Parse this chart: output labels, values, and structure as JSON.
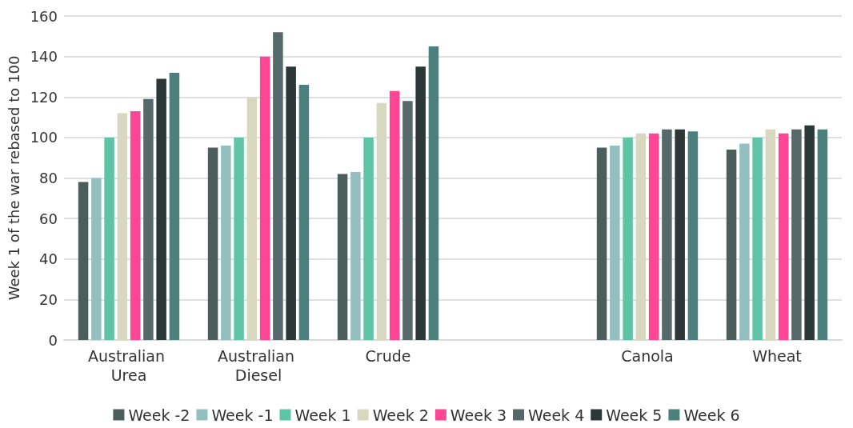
{
  "chart_data": {
    "type": "bar",
    "ylabel": "Week 1 of the war rebased to 100",
    "categories": [
      "Australian Urea",
      "Australian Diesel",
      "Crude",
      null,
      "Canola",
      "Wheat"
    ],
    "series": [
      {
        "name": "Week -2",
        "color": "#4a5e5c",
        "values": [
          78,
          95,
          82,
          null,
          95,
          94
        ]
      },
      {
        "name": "Week -1",
        "color": "#93bfbf",
        "values": [
          80,
          96,
          83,
          null,
          96,
          97
        ]
      },
      {
        "name": "Week 1",
        "color": "#5fc4a6",
        "values": [
          100,
          100,
          100,
          null,
          100,
          100
        ]
      },
      {
        "name": "Week 2",
        "color": "#d8d8c0",
        "values": [
          112,
          120,
          117,
          null,
          102,
          104
        ]
      },
      {
        "name": "Week 3",
        "color": "#ff4694",
        "values": [
          113,
          140,
          123,
          null,
          102,
          102
        ]
      },
      {
        "name": "Week 4",
        "color": "#56696a",
        "values": [
          119,
          152,
          118,
          null,
          104,
          104
        ]
      },
      {
        "name": "Week 5",
        "color": "#2c3838",
        "values": [
          129,
          135,
          135,
          null,
          104,
          106
        ]
      },
      {
        "name": "Week 6",
        "color": "#4b807c",
        "values": [
          132,
          126,
          145,
          null,
          103,
          104
        ]
      }
    ],
    "ylim": [
      0,
      160
    ],
    "yticks": [
      0,
      20,
      40,
      60,
      80,
      100,
      120,
      140,
      160
    ],
    "grid": "y",
    "legend": "bottom"
  }
}
